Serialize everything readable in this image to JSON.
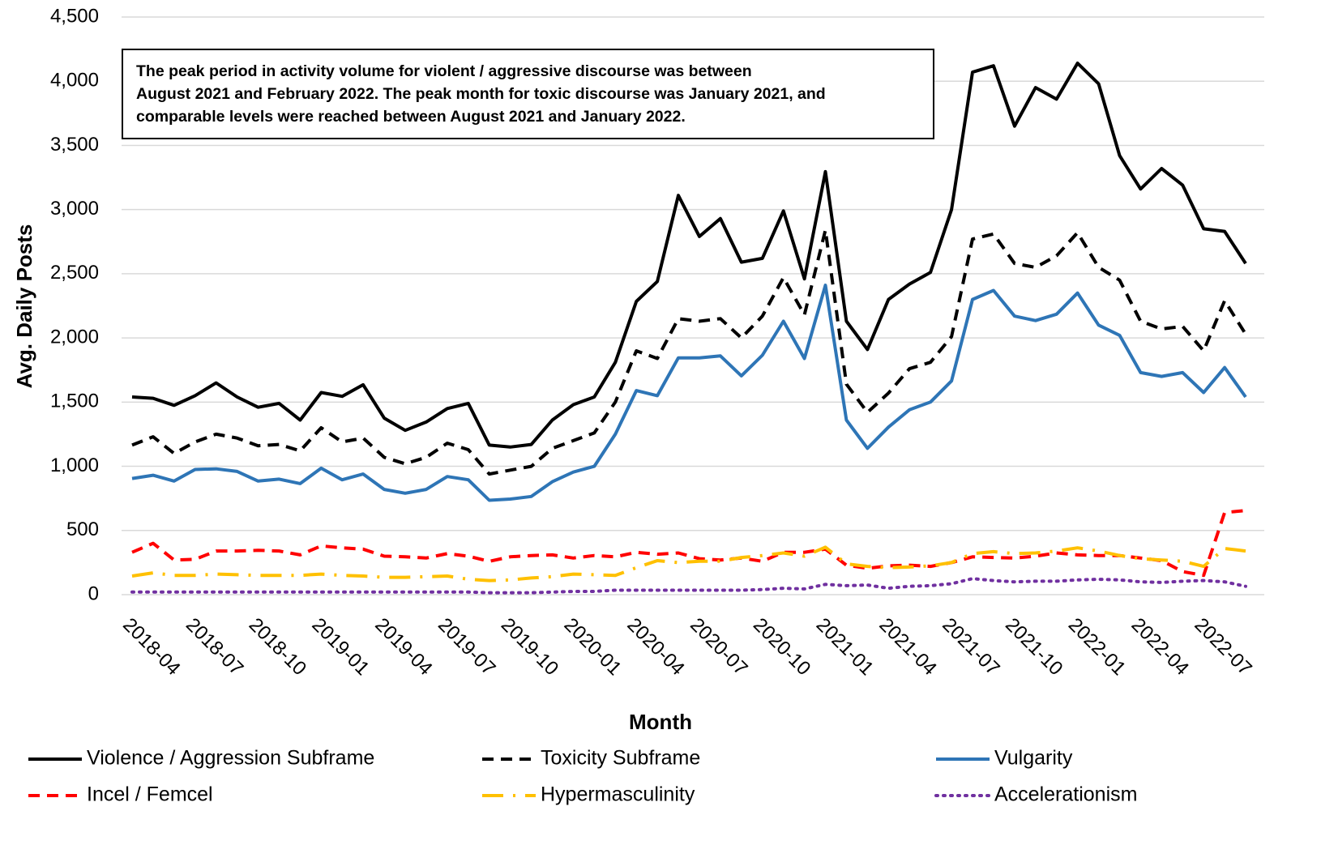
{
  "chart_data": {
    "type": "line",
    "y_label": "Avg. Daily Posts",
    "x_label": "Month",
    "annotation": [
      "The peak period in activity volume for violent / aggressive discourse was between",
      "August 2021 and February 2022. The peak month for toxic discourse was January 2021, and",
      "comparable levels were reached between August 2021 and January 2022."
    ],
    "categories": [
      "2018-04",
      null,
      null,
      "2018-07",
      null,
      null,
      "2018-10",
      null,
      null,
      "2019-01",
      null,
      null,
      "2019-04",
      null,
      null,
      "2019-07",
      null,
      null,
      "2019-10",
      null,
      null,
      "2020-01",
      null,
      null,
      "2020-04",
      null,
      null,
      "2020-07",
      null,
      null,
      "2020-10",
      null,
      null,
      "2021-01",
      null,
      null,
      "2021-04",
      null,
      null,
      "2021-07",
      null,
      null,
      "2021-10",
      null,
      null,
      "2022-01",
      null,
      null,
      "2022-04",
      null,
      null,
      "2022-07",
      null,
      null
    ],
    "ylim": [
      0,
      4500
    ],
    "yticks": [
      0,
      500,
      {
        "value": 1000,
        "label": "1,000"
      },
      {
        "value": 1500,
        "label": "1,500"
      },
      {
        "value": 2000,
        "label": "2,000"
      },
      {
        "value": 2500,
        "label": "2,500"
      },
      {
        "value": 3000,
        "label": "3,000"
      },
      {
        "value": 3500,
        "label": "3,500"
      },
      {
        "value": 4000,
        "label": "4,000"
      },
      {
        "value": 4500,
        "label": "4,500"
      }
    ],
    "grid": true,
    "legend": "bottom",
    "series": [
      {
        "name": "Violence / Aggression Subframe",
        "color": "#000000",
        "dash": "solid",
        "values": [
          1540,
          1530,
          1475,
          1550,
          1650,
          1540,
          1460,
          1490,
          1360,
          1575,
          1545,
          1635,
          1375,
          1280,
          1345,
          1450,
          1490,
          1165,
          1150,
          1170,
          1360,
          1480,
          1540,
          1810,
          2285,
          2440,
          3110,
          2790,
          2930,
          2590,
          2620,
          2990,
          2460,
          3295,
          2130,
          1910,
          2300,
          2420,
          2510,
          3000,
          4070,
          4120,
          3650,
          3950,
          3860,
          4140,
          3980,
          3420,
          3160,
          3320,
          3190,
          2850,
          2830,
          2580
        ]
      },
      {
        "name": "Toxicity Subframe",
        "color": "#000000",
        "dash": "dashed",
        "values": [
          1165,
          1230,
          1100,
          1190,
          1250,
          1220,
          1160,
          1170,
          1120,
          1300,
          1190,
          1220,
          1070,
          1020,
          1070,
          1180,
          1130,
          940,
          970,
          1000,
          1140,
          1200,
          1260,
          1500,
          1900,
          1840,
          2150,
          2130,
          2150,
          2000,
          2170,
          2470,
          2180,
          2840,
          1640,
          1420,
          1570,
          1760,
          1810,
          2010,
          2770,
          2810,
          2580,
          2550,
          2640,
          2820,
          2550,
          2450,
          2130,
          2070,
          2090,
          1900,
          2290,
          2030
        ]
      },
      {
        "name": "Vulgarity",
        "color": "#2e75b6",
        "dash": "solid",
        "values": [
          905,
          930,
          885,
          975,
          980,
          960,
          885,
          900,
          865,
          985,
          895,
          940,
          820,
          790,
          820,
          920,
          895,
          735,
          745,
          765,
          880,
          955,
          1000,
          1250,
          1590,
          1550,
          1845,
          1845,
          1860,
          1705,
          1865,
          2130,
          1840,
          2410,
          1360,
          1140,
          1305,
          1440,
          1500,
          1665,
          2300,
          2370,
          2170,
          2135,
          2185,
          2350,
          2100,
          2020,
          1730,
          1700,
          1730,
          1575,
          1770,
          1540
        ]
      },
      {
        "name": "Incel / Femcel",
        "color": "#ff0000",
        "dash": "dashed",
        "values": [
          330,
          400,
          270,
          275,
          340,
          340,
          345,
          340,
          310,
          380,
          365,
          355,
          300,
          295,
          285,
          320,
          300,
          260,
          295,
          305,
          310,
          285,
          305,
          295,
          330,
          315,
          325,
          280,
          270,
          285,
          260,
          330,
          330,
          355,
          230,
          205,
          225,
          230,
          220,
          250,
          295,
          290,
          285,
          300,
          325,
          310,
          305,
          305,
          285,
          265,
          180,
          150,
          640,
          655
        ]
      },
      {
        "name": "Hypermasculinity",
        "color": "#ffc000",
        "dash": "dash-dot",
        "values": [
          145,
          170,
          150,
          150,
          160,
          155,
          150,
          150,
          150,
          160,
          150,
          145,
          135,
          135,
          140,
          145,
          120,
          110,
          115,
          130,
          140,
          160,
          155,
          150,
          210,
          265,
          250,
          260,
          260,
          290,
          305,
          325,
          300,
          370,
          240,
          220,
          210,
          215,
          225,
          250,
          320,
          335,
          320,
          325,
          340,
          365,
          340,
          305,
          280,
          270,
          260,
          220,
          360,
          340
        ]
      },
      {
        "name": "Accelerationism",
        "color": "#7030a0",
        "dash": "dotted",
        "values": [
          20,
          20,
          20,
          20,
          20,
          20,
          20,
          20,
          20,
          20,
          20,
          20,
          20,
          20,
          20,
          20,
          20,
          15,
          15,
          15,
          20,
          25,
          25,
          35,
          35,
          35,
          35,
          35,
          35,
          35,
          40,
          50,
          45,
          80,
          70,
          75,
          50,
          65,
          70,
          85,
          125,
          110,
          100,
          105,
          105,
          115,
          120,
          115,
          100,
          95,
          105,
          110,
          100,
          65
        ]
      }
    ]
  }
}
